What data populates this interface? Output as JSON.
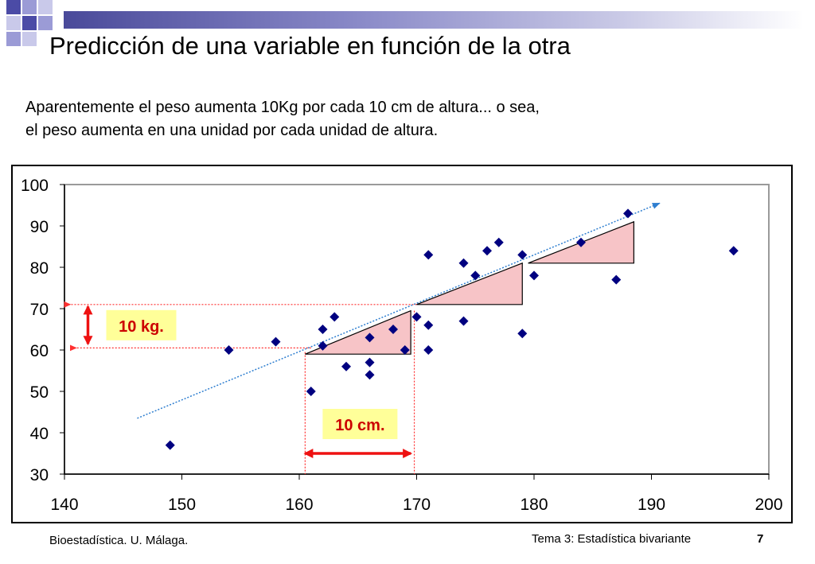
{
  "slide": {
    "title": "Predicción de una variable en función de la otra",
    "subtitle_line1": "Aparentemente el peso aumenta 10Kg por cada 10 cm de altura... o sea,",
    "subtitle_line2": "el peso aumenta en una unidad por cada unidad de altura."
  },
  "footer": {
    "left": "Bioestadística. U. Málaga.",
    "right": "Tema 3: Estadística bivariante",
    "page": "7"
  },
  "colors": {
    "points": "#000080",
    "trend": "#2f7fd0",
    "triangle_fill": "#f7c4c7",
    "guides": "#ff3030",
    "arrow": "#ee1111",
    "label_bg": "#ffff99"
  },
  "chart_data": {
    "type": "scatter",
    "title": "",
    "xlabel": "",
    "ylabel": "",
    "xlim": [
      140,
      200
    ],
    "ylim": [
      30,
      100
    ],
    "xticks": [
      140,
      150,
      160,
      170,
      180,
      190,
      200
    ],
    "yticks": [
      30,
      40,
      50,
      60,
      70,
      80,
      90,
      100
    ],
    "grid": false,
    "points": [
      {
        "x": 149,
        "y": 37
      },
      {
        "x": 154,
        "y": 60
      },
      {
        "x": 158,
        "y": 62
      },
      {
        "x": 161,
        "y": 50
      },
      {
        "x": 162,
        "y": 65
      },
      {
        "x": 162,
        "y": 61
      },
      {
        "x": 163,
        "y": 68
      },
      {
        "x": 164,
        "y": 56
      },
      {
        "x": 166,
        "y": 63
      },
      {
        "x": 166,
        "y": 57
      },
      {
        "x": 166,
        "y": 54
      },
      {
        "x": 168,
        "y": 65
      },
      {
        "x": 169,
        "y": 60
      },
      {
        "x": 170,
        "y": 68
      },
      {
        "x": 171,
        "y": 83
      },
      {
        "x": 171,
        "y": 66
      },
      {
        "x": 171,
        "y": 60
      },
      {
        "x": 174,
        "y": 81
      },
      {
        "x": 174,
        "y": 67
      },
      {
        "x": 175,
        "y": 78
      },
      {
        "x": 176,
        "y": 84
      },
      {
        "x": 177,
        "y": 86
      },
      {
        "x": 179,
        "y": 83
      },
      {
        "x": 179,
        "y": 64
      },
      {
        "x": 180,
        "y": 78
      },
      {
        "x": 184,
        "y": 86
      },
      {
        "x": 187,
        "y": 77
      },
      {
        "x": 188,
        "y": 93
      },
      {
        "x": 197,
        "y": 84
      }
    ],
    "trendline": {
      "x": [
        146.2,
        190.7
      ],
      "y": [
        43.5,
        95.5
      ]
    },
    "triangles": [
      {
        "x1": 160.5,
        "x2": 169.5,
        "y_low": 59,
        "y_high": 69.5
      },
      {
        "x1": 170,
        "x2": 179,
        "y_low": 71,
        "y_high": 81
      },
      {
        "x1": 179.5,
        "x2": 188.5,
        "y_low": 81,
        "y_high": 91
      }
    ],
    "annotations": [
      {
        "text": "10 kg.",
        "kind": "vertical",
        "x": 142,
        "y_from": 61.5,
        "y_to": 70.5
      },
      {
        "text": "10 cm.",
        "kind": "horizontal",
        "y": 35,
        "x_from": 160.5,
        "x_to": 169.5
      }
    ],
    "guides": {
      "horizontal": [
        {
          "y": 71,
          "x_from": 140.5,
          "x_to": 170
        },
        {
          "y": 60.5,
          "x_from": 141,
          "x_to": 161
        }
      ],
      "vertical": [
        {
          "x": 160.5,
          "y_from": 59.5,
          "y_to": 30
        },
        {
          "x": 169.8,
          "y_from": 69.5,
          "y_to": 30
        }
      ]
    }
  }
}
